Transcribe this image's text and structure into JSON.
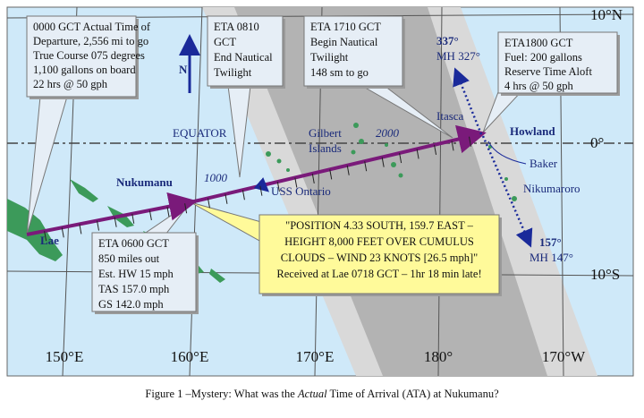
{
  "callouts": {
    "departure": [
      "0000 GCT Actual Time of",
      "Departure, 2,556 mi to go",
      "True Course 075 degrees",
      "1,100 gallons on board",
      "22 hrs @ 50 gph"
    ],
    "end_twilight": [
      "ETA 0810",
      "GCT",
      "End Nautical",
      "Twilight"
    ],
    "begin_twilight": [
      "ETA 1710 GCT",
      "Begin Nautical",
      "Twilight",
      "148 sm to go"
    ],
    "howland_eta": [
      "ETA1800 GCT",
      "Fuel: 200 gallons",
      "Reserve Time Aloft",
      "4 hrs @ 50 gph"
    ],
    "nukumanu_eta": [
      "ETA 0600 GCT",
      "850 miles out",
      "Est. HW 15 mph",
      "TAS 157.0 mph",
      "GS 142.0 mph"
    ],
    "position_report": [
      "\"POSITION 4.33 SOUTH, 159.7 EAST –",
      "HEIGHT 8,000 FEET OVER CUMULUS",
      "CLOUDS – WIND 23 KNOTS [26.5 mph]\"",
      "Received at Lae 0718 GCT – 1hr 18 min late!"
    ]
  },
  "labels": {
    "north": "N",
    "equator": "EQUATOR",
    "nukumanu": "Nukumanu",
    "mile_1000": "1000",
    "uss_ontario": "USS Ontario",
    "gilbert": [
      "Gilbert",
      "Islands"
    ],
    "mile_2000": "2000",
    "itasca": "Itasca",
    "howland": "Howland",
    "baker": "Baker",
    "nikumaroro": "Nikumaroro",
    "lae": "Lae",
    "heading_north": [
      "337°",
      "MH 327°"
    ],
    "heading_south": [
      "157°",
      "MH 147°"
    ]
  },
  "latitude_labels": [
    "10°N",
    "0°",
    "10°S"
  ],
  "longitude_labels": [
    "150°E",
    "160°E",
    "170°E",
    "180°",
    "170°W"
  ],
  "caption": {
    "before": "Figure 1 –Mystery: What was the ",
    "emphasis": "Actual",
    "after": " Time of Arrival (ATA) at Nukumanu?"
  }
}
